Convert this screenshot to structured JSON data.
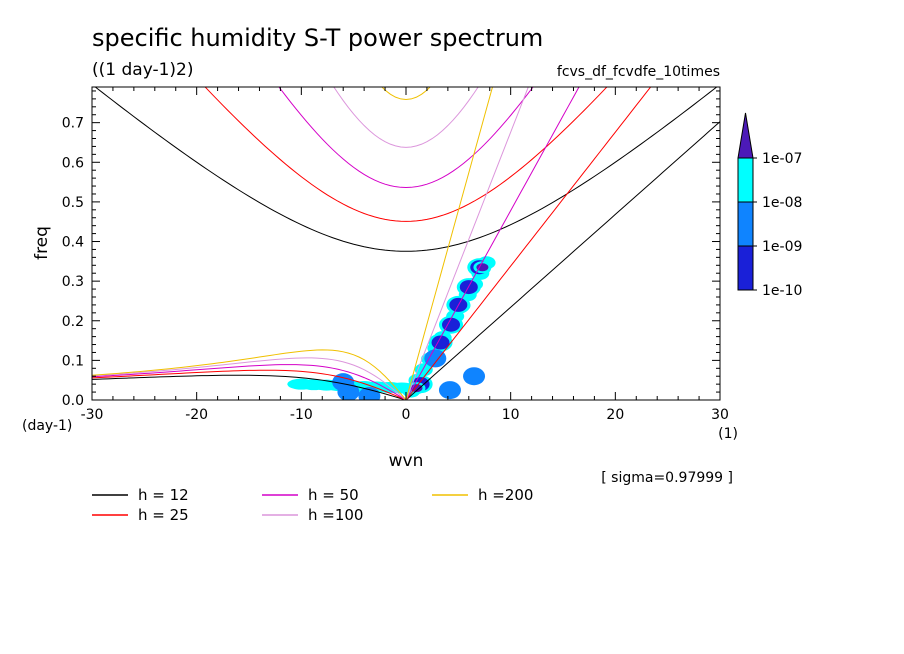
{
  "title": "specific humidity S-T power spectrum",
  "subtitle": "((1 day-1)2)",
  "case_name": "fcvs_df_fcvdfe_10times",
  "sigma_note": "[ sigma=0.97999 ]",
  "chart_data": {
    "type": "heatmap",
    "xlabel": "wvn",
    "ylabel": "freq",
    "x_unit": "(1)",
    "y_unit": "(day-1)",
    "xlim": [
      -30,
      30
    ],
    "ylim": [
      0,
      0.79
    ],
    "x_ticks": [
      -30,
      -20,
      -10,
      0,
      10,
      20,
      30
    ],
    "y_ticks": [
      0.0,
      0.1,
      0.2,
      0.3,
      0.4,
      0.5,
      0.6,
      0.7
    ],
    "x_tick_labels": [
      "-30",
      "-20",
      "-10",
      "0",
      "10",
      "20",
      "30"
    ],
    "y_tick_labels": [
      "0.0",
      "0.1",
      "0.2",
      "0.3",
      "0.4",
      "0.5",
      "0.6",
      "0.7"
    ],
    "colorbar": {
      "levels": [
        "1e-10",
        "1e-09",
        "1e-08",
        "1e-07"
      ],
      "colors": [
        "#00ffff",
        "#0f84ff",
        "#1a20d8",
        "#4c1ab8"
      ],
      "extend": "max"
    },
    "dispersion_curves": [
      {
        "label": "h = 12",
        "h": 12,
        "color": "#000000"
      },
      {
        "label": "h = 25",
        "h": 25,
        "color": "#ff0000"
      },
      {
        "label": "h = 50",
        "h": 50,
        "color": "#d400c8"
      },
      {
        "label": "h =100",
        "h": 100,
        "color": "#dc96dc"
      },
      {
        "label": "h =200",
        "h": 200,
        "color": "#f0c000"
      }
    ],
    "spectral_patches": [
      {
        "x": 7.0,
        "y": 0.335,
        "level": 2
      },
      {
        "x": 7.3,
        "y": 0.335,
        "level": 3
      },
      {
        "x": 6.0,
        "y": 0.285,
        "level": 2
      },
      {
        "x": 5.0,
        "y": 0.24,
        "level": 2
      },
      {
        "x": 4.3,
        "y": 0.19,
        "level": 2
      },
      {
        "x": 3.3,
        "y": 0.145,
        "level": 2
      },
      {
        "x": 2.8,
        "y": 0.105,
        "level": 1
      },
      {
        "x": 1.4,
        "y": 0.04,
        "level": 2
      },
      {
        "x": 1.0,
        "y": 0.03,
        "level": 3
      },
      {
        "x": 6.5,
        "y": 0.06,
        "level": 1
      },
      {
        "x": 4.2,
        "y": 0.025,
        "level": 1
      },
      {
        "x": -6.0,
        "y": 0.045,
        "level": 1
      },
      {
        "x": -5.5,
        "y": 0.02,
        "level": 1
      },
      {
        "x": -3.5,
        "y": 0.01,
        "level": 1
      }
    ]
  },
  "legend": {
    "items": [
      {
        "label": "h = 12",
        "color": "#000000"
      },
      {
        "label": "h = 50",
        "color": "#d400c8"
      },
      {
        "label": "h =200",
        "color": "#f0c000"
      },
      {
        "label": "h = 25",
        "color": "#ff0000"
      },
      {
        "label": "h =100",
        "color": "#dc96dc"
      }
    ]
  }
}
